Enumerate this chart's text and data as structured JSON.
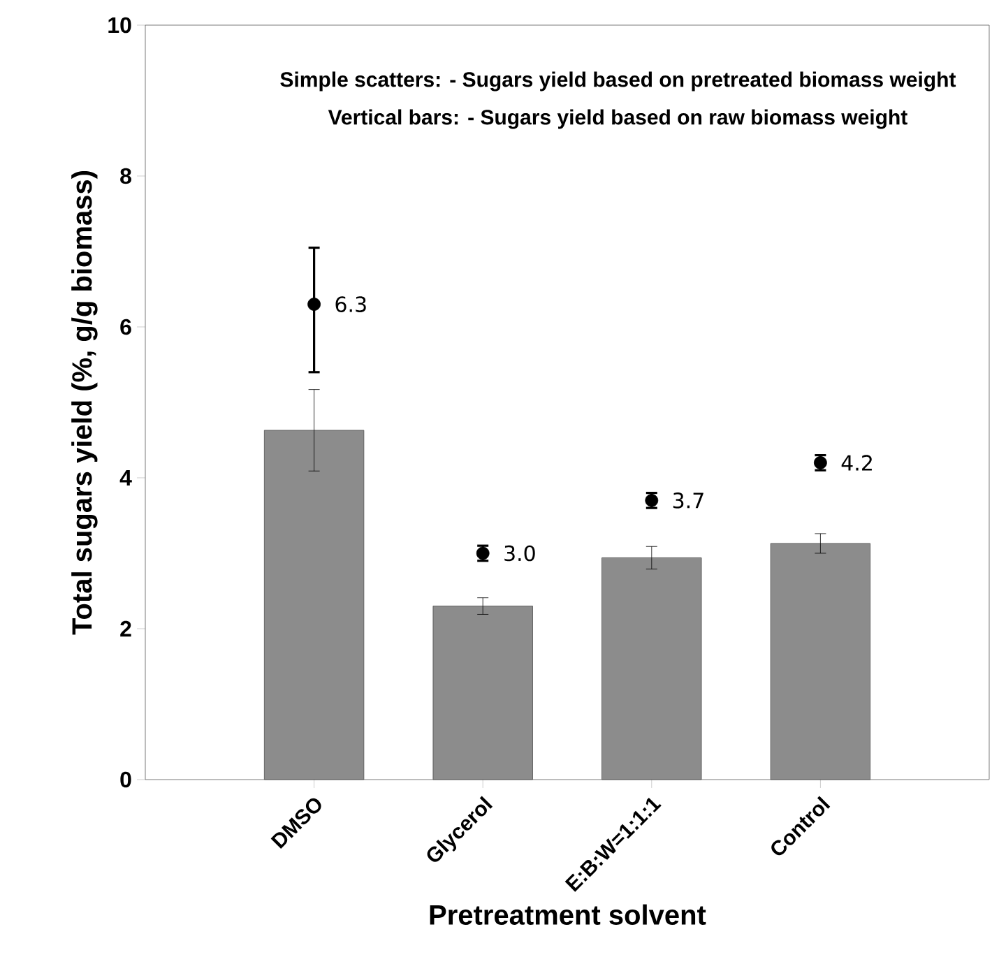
{
  "chart_data": {
    "type": "bar",
    "xlabel": "Pretreatment solvent",
    "ylabel": "Total sugars yield (%, g/g biomass)",
    "annotations": [
      "Simple scatters: - Sugars yield based on pretreated biomass weight",
      "Vertical bars: -  Sugars yield based on raw biomass weight"
    ],
    "categories": [
      "DMSO",
      "Glycerol",
      "E:B:W=1:1:1",
      "Control"
    ],
    "series": [
      {
        "color": "#8c8c8c",
        "values": [
          4.63,
          2.3,
          2.94,
          3.13
        ],
        "errors": [
          0.54,
          0.11,
          0.15,
          0.13
        ]
      },
      {
        "type": "scatter",
        "color": "#000000",
        "values": [
          6.3,
          3.0,
          3.7,
          4.2
        ],
        "errors": [
          [
            5.4,
            7.05
          ],
          0.1,
          0.1,
          0.1
        ],
        "value_labels": [
          "6.3",
          "3.0",
          "3.7",
          "4.2"
        ]
      }
    ],
    "marker": "circle",
    "ylim": [
      0,
      10
    ],
    "yticks": [
      0,
      2,
      4,
      6,
      8,
      10
    ]
  }
}
